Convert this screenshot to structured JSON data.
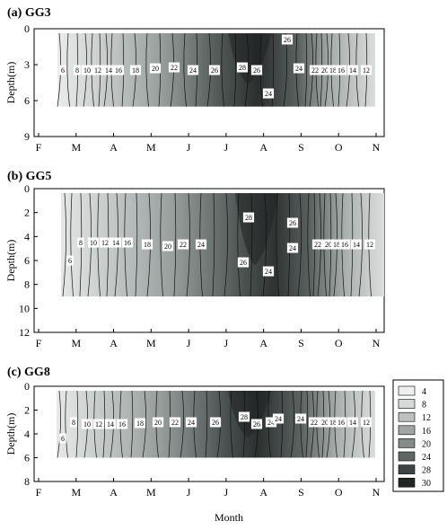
{
  "xlabel": "Month",
  "legend": {
    "levels": [
      "4",
      "8",
      "12",
      "16",
      "20",
      "24",
      "28",
      "30"
    ],
    "colors": [
      "#efefef",
      "#d6d9d8",
      "#bcc1bf",
      "#a0a6a4",
      "#838a88",
      "#5f6664",
      "#3e4443",
      "#222625"
    ]
  },
  "chart_data": [
    {
      "type": "contour",
      "title": "(a) GG3",
      "ylabel": "Depth(m)",
      "month_ticks": [
        "F",
        "M",
        "A",
        "M",
        "J",
        "J",
        "A",
        "S",
        "O",
        "N"
      ],
      "depth_ticks": [
        "0",
        "3",
        "6",
        "9"
      ],
      "ylim": [
        0,
        9
      ],
      "data_depth": 6.5,
      "contour_labels": [
        "6",
        "8",
        "10",
        "12",
        "14",
        "16",
        "18",
        "20",
        "22",
        "24",
        "26",
        "28",
        "26",
        "24",
        "26",
        "24",
        "22",
        "20",
        "18",
        "16",
        "14",
        "12"
      ]
    },
    {
      "type": "contour",
      "title": "(b) GG5",
      "ylabel": "Depth(m)",
      "month_ticks": [
        "F",
        "M",
        "A",
        "M",
        "J",
        "J",
        "A",
        "S",
        "O",
        "N"
      ],
      "depth_ticks": [
        "0",
        "2",
        "4",
        "6",
        "8",
        "10",
        "12"
      ],
      "ylim": [
        0,
        12
      ],
      "data_depth": 9,
      "contour_labels": [
        "6",
        "8",
        "10",
        "12",
        "14",
        "16",
        "18",
        "20",
        "22",
        "24",
        "28",
        "26",
        "24",
        "26",
        "24",
        "22",
        "20",
        "18",
        "16",
        "14",
        "12"
      ]
    },
    {
      "type": "contour",
      "title": "(c) GG8",
      "ylabel": "Depth(m)",
      "month_ticks": [
        "F",
        "M",
        "A",
        "M",
        "J",
        "J",
        "A",
        "S",
        "O",
        "N"
      ],
      "depth_ticks": [
        "0",
        "2",
        "4",
        "6",
        "8"
      ],
      "ylim": [
        0,
        8
      ],
      "data_depth": 6,
      "contour_labels": [
        "6",
        "8",
        "10",
        "12",
        "14",
        "16",
        "18",
        "20",
        "22",
        "24",
        "26",
        "28",
        "26",
        "24",
        "24",
        "24",
        "22",
        "20",
        "18",
        "16",
        "14",
        "12"
      ]
    }
  ]
}
